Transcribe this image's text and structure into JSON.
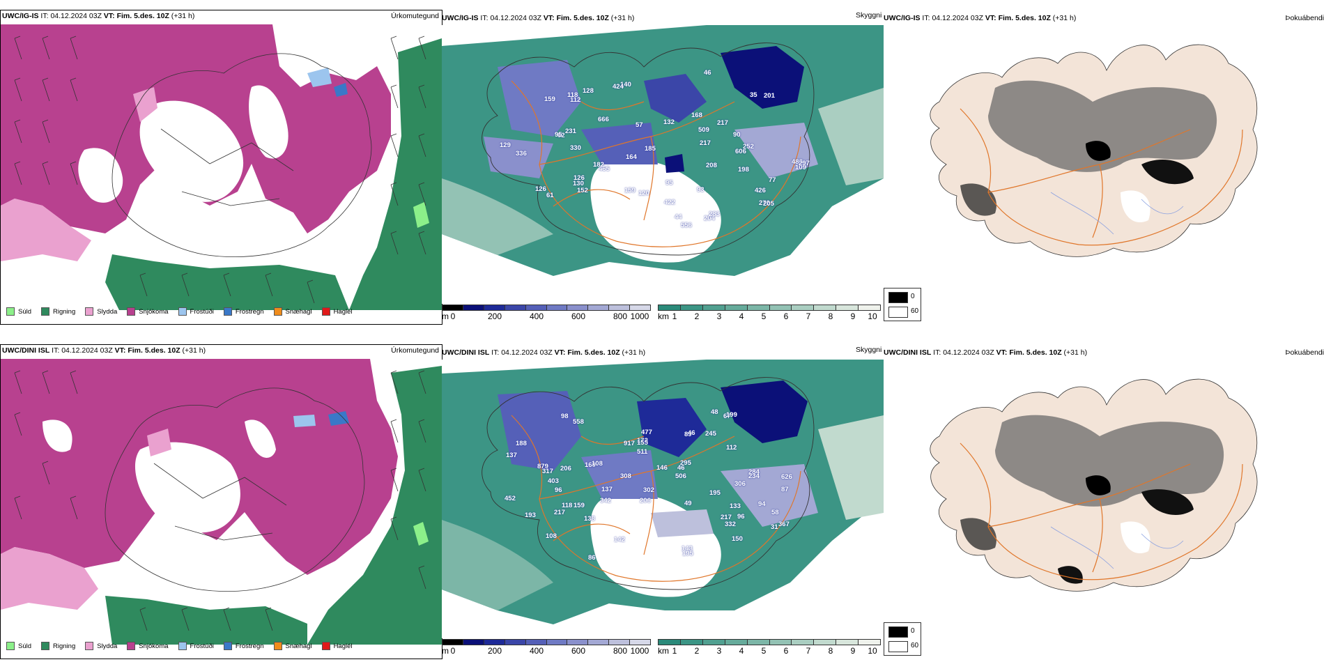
{
  "colors": {
    "precip": {
      "snow": "#b8418f",
      "rain": "#2f8a5e",
      "sleet": "#eaa1cf",
      "drizzle": "#8cf08a",
      "frost_drizzle": "#9cc5ee",
      "frost_rain": "#3a78c8",
      "graupel": "#f08c1c",
      "hail": "#e01a1a"
    },
    "cloud_base_ramp": [
      "#000000",
      "#0b1078",
      "#1e2a98",
      "#3b46a8",
      "#5560b8",
      "#6f7ac4",
      "#8a90cc",
      "#a3a8d4",
      "#bdc0dc",
      "#d6d8e8"
    ],
    "visibility_ramp": [
      "#2b8a7a",
      "#3c9585",
      "#51a090",
      "#66ab9b",
      "#7cb6a7",
      "#93c2b4",
      "#aacec1",
      "#c1dace",
      "#d8e6dc",
      "#eff2ec"
    ],
    "fog_dark": "#000000",
    "fog_light": "#ffffff",
    "land": "#f3e4d8",
    "roads": "#e0762a"
  },
  "icons": {
    "wind_barbs": "wind-barb-icon",
    "coast": "coastline-shape"
  },
  "rows": [
    {
      "model": "UWC/IG-IS",
      "it_label": "IT:",
      "it_value": "04.12.2024 03Z",
      "vt_label": "VT:",
      "vt_value": "Fim. 5.des. 10Z",
      "lead": "(+31 h)",
      "precip_type_title": "Úrkomutegund",
      "visibility_title": "Skyggni",
      "fog_title": "Þokuábendi",
      "ceiling_labels": [
        "201",
        "198",
        "509",
        "152",
        "666",
        "272",
        "465",
        "330",
        "426",
        "159",
        "483",
        "204",
        "182",
        "231",
        "140",
        "208",
        "164",
        "252",
        "112",
        "217",
        "130",
        "61",
        "126",
        "95",
        "57",
        "44",
        "46",
        "35",
        "424",
        "129",
        "120",
        "93",
        "118",
        "556",
        "90",
        "62",
        "109",
        "126",
        "95",
        "77",
        "168",
        "217",
        "128",
        "159",
        "283",
        "205",
        "297",
        "336",
        "132",
        "185",
        "422"
      ],
      "visibility_labels": [
        "606"
      ]
    },
    {
      "model": "UWC/DINI ISL",
      "it_label": "IT:",
      "it_value": "04.12.2024 03Z",
      "vt_label": "VT:",
      "vt_value": "Fim. 5.des. 10Z",
      "lead": "(+31 h)",
      "precip_type_title": "Úrkomutegund",
      "visibility_title": "Skyggni",
      "fog_title": "Þokuábendi",
      "ceiling_labels": [
        "302",
        "511",
        "284",
        "217",
        "879",
        "332",
        "195",
        "917",
        "94",
        "169",
        "403",
        "367",
        "206",
        "142",
        "137",
        "188",
        "193",
        "146",
        "477",
        "143",
        "217",
        "96",
        "234",
        "112",
        "87",
        "133",
        "118",
        "46",
        "67",
        "58",
        "48",
        "108",
        "150",
        "138",
        "558",
        "626",
        "89",
        "108",
        "506",
        "137",
        "31",
        "86",
        "98",
        "49",
        "452",
        "173",
        "199",
        "155",
        "306",
        "317",
        "342",
        "245",
        "206",
        "295",
        "308",
        "195",
        "159",
        "96",
        "46"
      ],
      "visibility_labels": []
    }
  ],
  "precip_legend": [
    {
      "label": "Súld",
      "color_key": "drizzle"
    },
    {
      "label": "Rigning",
      "color_key": "rain"
    },
    {
      "label": "Slydda",
      "color_key": "sleet"
    },
    {
      "label": "Snjókoma",
      "color_key": "snow"
    },
    {
      "label": "Frostúði",
      "color_key": "frost_drizzle"
    },
    {
      "label": "Frostregn",
      "color_key": "frost_rain"
    },
    {
      "label": "Snæhagl",
      "color_key": "graupel"
    },
    {
      "label": "Haglél",
      "color_key": "hail"
    }
  ],
  "ceiling_scale": {
    "unit": "m",
    "ticks": [
      "0",
      "200",
      "400",
      "600",
      "800",
      "1000"
    ]
  },
  "visibility_scale": {
    "unit": "km",
    "ticks": [
      "1",
      "2",
      "3",
      "4",
      "5",
      "6",
      "7",
      "8",
      "9",
      "10"
    ]
  },
  "fog_scale": {
    "ticks": [
      "0",
      "60"
    ]
  }
}
